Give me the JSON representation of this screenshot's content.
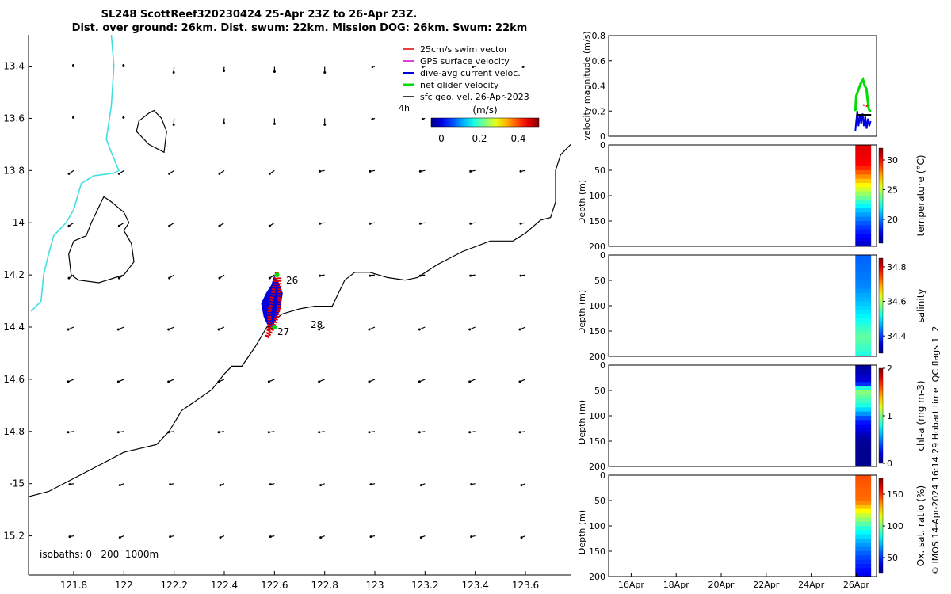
{
  "title": {
    "line1": "SL248 ScottReef320230424 25-Apr 23Z to 26-Apr 23Z.",
    "line2": "Dist. over ground: 26km. Dist. swum: 22km. Mission DOG: 26km. Swum: 22km"
  },
  "colors": {
    "swim": "#e00000",
    "gps": "#cc00cc",
    "dive": "#0000dd",
    "net": "#00dd00",
    "sfc": "#000000",
    "coast": "#40e0e0",
    "isobath": "#000000"
  },
  "chart_data": [
    {
      "type": "scatter",
      "name": "map",
      "xlim": [
        121.62,
        123.78
      ],
      "ylim": [
        -15.35,
        -13.28
      ],
      "xticks": [
        121.8,
        122,
        122.2,
        122.4,
        122.6,
        122.8,
        123,
        123.2,
        123.4,
        123.6
      ],
      "xtick_labels": [
        "121.8",
        "122",
        "122.2",
        "122.4",
        "122.6",
        "122.8",
        "123",
        "123.2",
        "123.4",
        "123.6"
      ],
      "yticks": [
        -13.4,
        -13.6,
        -13.8,
        -14,
        -14.2,
        -14.4,
        -14.6,
        -14.8,
        -15,
        -15.2
      ],
      "ytick_labels": [
        "13.4",
        "13.6",
        "13.8",
        "-14",
        "14.2",
        "14.4",
        "14.6",
        "14.8",
        "-15",
        "15.2"
      ],
      "legend": {
        "position": "top-right",
        "entries": [
          "25cm/s swim vector",
          "GPS surface velocity",
          "dive-avg current veloc.",
          "net glider velocity",
          "sfc geo. vel. 26-Apr-2023"
        ]
      },
      "colorbar": {
        "label": "(m/s)",
        "ticks": [
          "0",
          "0.2",
          "0.4"
        ],
        "range": [
          -0.05,
          0.5
        ]
      },
      "isobath_note": "isobaths: 0   200  1000m",
      "time_marker": "4h",
      "day_labels": [
        {
          "text": "26",
          "x": 122.65,
          "y": -14.2
        },
        {
          "text": "27",
          "x": 122.62,
          "y": -14.41
        },
        {
          "text": "28",
          "x": 122.77,
          "y": -14.38
        }
      ],
      "coast": [
        [
          121.95,
          -13.28
        ],
        [
          121.96,
          -13.4
        ],
        [
          121.95,
          -13.55
        ],
        [
          121.93,
          -13.68
        ],
        [
          121.95,
          -13.73
        ],
        [
          121.98,
          -13.8
        ],
        [
          121.96,
          -13.81
        ],
        [
          121.88,
          -13.82
        ],
        [
          121.83,
          -13.85
        ],
        [
          121.8,
          -13.95
        ],
        [
          121.77,
          -14.0
        ],
        [
          121.72,
          -14.05
        ],
        [
          121.7,
          -14.12
        ],
        [
          121.68,
          -14.2
        ],
        [
          121.67,
          -14.3
        ],
        [
          121.63,
          -14.34
        ]
      ],
      "isobath_island": [
        [
          121.87,
          -14.0
        ],
        [
          121.92,
          -13.9
        ],
        [
          121.95,
          -13.92
        ],
        [
          122.0,
          -13.96
        ],
        [
          122.02,
          -14.0
        ],
        [
          122.0,
          -14.03
        ],
        [
          122.03,
          -14.08
        ],
        [
          122.04,
          -14.15
        ],
        [
          122.0,
          -14.2
        ],
        [
          121.9,
          -14.23
        ],
        [
          121.82,
          -14.22
        ],
        [
          121.79,
          -14.2
        ],
        [
          121.78,
          -14.12
        ],
        [
          121.8,
          -14.07
        ],
        [
          121.85,
          -14.05
        ]
      ],
      "isobath_small": [
        [
          122.1,
          -13.58
        ],
        [
          122.12,
          -13.57
        ],
        [
          122.15,
          -13.6
        ],
        [
          122.17,
          -13.65
        ],
        [
          122.16,
          -13.73
        ],
        [
          122.1,
          -13.7
        ],
        [
          122.05,
          -13.65
        ],
        [
          122.06,
          -13.61
        ]
      ],
      "isobath_shelf": [
        [
          121.62,
          -15.05
        ],
        [
          121.7,
          -15.03
        ],
        [
          121.9,
          -14.93
        ],
        [
          122.0,
          -14.88
        ],
        [
          122.13,
          -14.85
        ],
        [
          122.18,
          -14.8
        ],
        [
          122.23,
          -14.72
        ],
        [
          122.35,
          -14.64
        ],
        [
          122.4,
          -14.58
        ],
        [
          122.43,
          -14.55
        ],
        [
          122.47,
          -14.55
        ],
        [
          122.52,
          -14.48
        ],
        [
          122.57,
          -14.4
        ],
        [
          122.63,
          -14.35
        ],
        [
          122.7,
          -14.33
        ],
        [
          122.76,
          -14.32
        ],
        [
          122.83,
          -14.32
        ],
        [
          122.85,
          -14.28
        ],
        [
          122.88,
          -14.22
        ],
        [
          122.92,
          -14.19
        ],
        [
          122.98,
          -14.19
        ],
        [
          123.05,
          -14.21
        ],
        [
          123.12,
          -14.22
        ],
        [
          123.17,
          -14.21
        ],
        [
          123.25,
          -14.16
        ],
        [
          123.35,
          -14.11
        ],
        [
          123.46,
          -14.07
        ],
        [
          123.55,
          -14.07
        ],
        [
          123.6,
          -14.04
        ],
        [
          123.66,
          -13.99
        ],
        [
          123.7,
          -13.98
        ],
        [
          123.72,
          -13.92
        ],
        [
          123.72,
          -13.8
        ],
        [
          123.74,
          -13.74
        ],
        [
          123.78,
          -13.7
        ]
      ],
      "track_dive": [
        [
          122.6,
          -14.21
        ],
        [
          122.59,
          -14.24
        ],
        [
          122.57,
          -14.27
        ],
        [
          122.55,
          -14.31
        ],
        [
          122.56,
          -14.36
        ],
        [
          122.58,
          -14.4
        ],
        [
          122.6,
          -14.38
        ],
        [
          122.62,
          -14.33
        ],
        [
          122.63,
          -14.27
        ],
        [
          122.61,
          -14.22
        ]
      ],
      "track_swim": [
        [
          122.61,
          -14.19
        ],
        [
          122.6,
          -14.24
        ],
        [
          122.59,
          -14.29
        ],
        [
          122.58,
          -14.34
        ],
        [
          122.58,
          -14.4
        ],
        [
          122.57,
          -14.44
        ],
        [
          122.59,
          -14.41
        ],
        [
          122.61,
          -14.36
        ],
        [
          122.62,
          -14.31
        ],
        [
          122.62,
          -14.26
        ],
        [
          122.62,
          -14.21
        ]
      ]
    },
    {
      "type": "line",
      "name": "velocity",
      "ylabel": "velocity magnitude (m/s)",
      "ylim": [
        0,
        0.8
      ],
      "yticks": [
        "0",
        "0.2",
        "0.4",
        "0.6",
        "0.8"
      ],
      "series": [
        {
          "color": "#00dd00",
          "values": [
            [
              25.96,
              0.2
            ],
            [
              26.0,
              0.32
            ],
            [
              26.06,
              0.35
            ],
            [
              26.12,
              0.38
            ],
            [
              26.2,
              0.42
            ],
            [
              26.3,
              0.45
            ],
            [
              26.38,
              0.4
            ],
            [
              26.45,
              0.38
            ],
            [
              26.5,
              0.3
            ],
            [
              26.55,
              0.22
            ],
            [
              26.6,
              0.2
            ],
            [
              26.66,
              0.2
            ]
          ]
        },
        {
          "color": "#0000dd",
          "values": [
            [
              25.96,
              0.04
            ],
            [
              26.0,
              0.12
            ],
            [
              26.05,
              0.2
            ],
            [
              26.1,
              0.08
            ],
            [
              26.16,
              0.16
            ],
            [
              26.22,
              0.1
            ],
            [
              26.28,
              0.18
            ],
            [
              26.34,
              0.08
            ],
            [
              26.4,
              0.16
            ],
            [
              26.46,
              0.06
            ],
            [
              26.52,
              0.14
            ],
            [
              26.58,
              0.08
            ],
            [
              26.64,
              0.12
            ]
          ]
        },
        {
          "color": "#e00000",
          "values": [
            [
              26.3,
              0.25
            ],
            [
              26.45,
              0.24
            ],
            [
              26.6,
              0.25
            ]
          ]
        },
        {
          "color": "#000000",
          "values": [
            [
              26.0,
              0.17
            ],
            [
              26.66,
              0.17
            ]
          ]
        }
      ]
    },
    {
      "type": "heatmap",
      "name": "temperature",
      "ylabel": "Depth (m)",
      "yticks": [
        "0",
        "50",
        "100",
        "150",
        "200"
      ],
      "colorbar_label": "temperature (°C)",
      "cticks": [
        "20",
        "25",
        "30"
      ],
      "clim": [
        16,
        32
      ],
      "profile": [
        [
          0,
          30.5
        ],
        [
          40,
          30
        ],
        [
          70,
          27
        ],
        [
          100,
          24
        ],
        [
          130,
          21
        ],
        [
          160,
          19
        ],
        [
          200,
          17
        ]
      ]
    },
    {
      "type": "heatmap",
      "name": "salinity",
      "ylabel": "Depth (m)",
      "yticks": [
        "0",
        "50",
        "100",
        "150",
        "200"
      ],
      "colorbar_label": "salinity",
      "cticks": [
        "34.4",
        "34.6",
        "34.8"
      ],
      "clim": [
        34.3,
        34.85
      ],
      "profile": [
        [
          0,
          34.42
        ],
        [
          60,
          34.44
        ],
        [
          120,
          34.5
        ],
        [
          160,
          34.56
        ],
        [
          200,
          34.52
        ]
      ]
    },
    {
      "type": "heatmap",
      "name": "chla",
      "ylabel": "Depth (m)",
      "yticks": [
        "0",
        "50",
        "100",
        "150",
        "200"
      ],
      "colorbar_label": "chl-a (mg m-3)",
      "cticks": [
        "0",
        "1",
        "2"
      ],
      "clim": [
        0,
        2
      ],
      "profile": [
        [
          0,
          0.05
        ],
        [
          35,
          0.2
        ],
        [
          50,
          1.05
        ],
        [
          80,
          0.8
        ],
        [
          110,
          0.3
        ],
        [
          150,
          0.05
        ],
        [
          200,
          0.02
        ]
      ]
    },
    {
      "type": "heatmap",
      "name": "oxygen",
      "ylabel": "Depth (m)",
      "yticks": [
        "0",
        "50",
        "100",
        "150",
        "200"
      ],
      "colorbar_label": "Ox. sat. ratio (%)",
      "cticks": [
        "50",
        "100",
        "150"
      ],
      "clim": [
        25,
        175
      ],
      "profile": [
        [
          0,
          145
        ],
        [
          50,
          140
        ],
        [
          70,
          120
        ],
        [
          100,
          90
        ],
        [
          130,
          70
        ],
        [
          160,
          55
        ],
        [
          200,
          40
        ]
      ],
      "xlim": [
        15,
        26.9
      ],
      "xticks": [
        16,
        18,
        20,
        22,
        24,
        26
      ],
      "xtick_labels": [
        "16Apr",
        "18Apr",
        "20Apr",
        "22Apr",
        "24Apr",
        "26Apr"
      ]
    }
  ],
  "footer": "© IMOS 14-Apr-2024 16:14:29 Hobart time. QC flags 1  2"
}
